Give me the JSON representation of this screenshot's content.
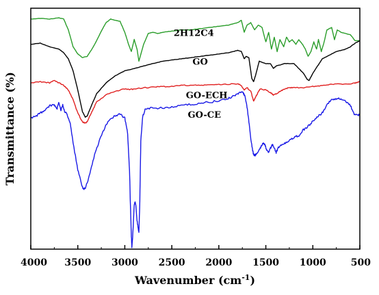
{
  "chart_data": {
    "type": "line",
    "xlabel": "Wavenumber (cm",
    "xlabel_sup": "-1",
    "xlabel_end": ")",
    "ylabel": "Transmittance (%)",
    "xlim": [
      4000,
      500
    ],
    "xticks": [
      4000,
      3500,
      3000,
      2500,
      2000,
      1500,
      1000,
      500
    ],
    "xtick_labels": [
      "4000",
      "3500",
      "3000",
      "2500",
      "2000",
      "1500",
      "1000",
      "500"
    ],
    "y_tick_labels_shown": false,
    "grid": false,
    "series": [
      {
        "name": "2H12C4",
        "color": "#2a9d2a",
        "points": [
          [
            4000,
            0.955
          ],
          [
            3900,
            0.958
          ],
          [
            3800,
            0.955
          ],
          [
            3700,
            0.96
          ],
          [
            3650,
            0.955
          ],
          [
            3600,
            0.91
          ],
          [
            3550,
            0.84
          ],
          [
            3500,
            0.81
          ],
          [
            3450,
            0.795
          ],
          [
            3400,
            0.8
          ],
          [
            3350,
            0.83
          ],
          [
            3300,
            0.865
          ],
          [
            3250,
            0.905
          ],
          [
            3200,
            0.94
          ],
          [
            3150,
            0.955
          ],
          [
            3100,
            0.95
          ],
          [
            3050,
            0.945
          ],
          [
            3000,
            0.9
          ],
          [
            2960,
            0.85
          ],
          [
            2930,
            0.82
          ],
          [
            2900,
            0.87
          ],
          [
            2870,
            0.83
          ],
          [
            2850,
            0.78
          ],
          [
            2800,
            0.85
          ],
          [
            2750,
            0.895
          ],
          [
            2700,
            0.9
          ],
          [
            2650,
            0.895
          ],
          [
            2600,
            0.9
          ],
          [
            2500,
            0.905
          ],
          [
            2400,
            0.91
          ],
          [
            2300,
            0.91
          ],
          [
            2200,
            0.915
          ],
          [
            2100,
            0.92
          ],
          [
            2000,
            0.925
          ],
          [
            1900,
            0.93
          ],
          [
            1850,
            0.935
          ],
          [
            1800,
            0.94
          ],
          [
            1760,
            0.95
          ],
          [
            1730,
            0.9
          ],
          [
            1700,
            0.93
          ],
          [
            1660,
            0.94
          ],
          [
            1620,
            0.91
          ],
          [
            1580,
            0.93
          ],
          [
            1540,
            0.92
          ],
          [
            1500,
            0.86
          ],
          [
            1470,
            0.9
          ],
          [
            1440,
            0.83
          ],
          [
            1410,
            0.88
          ],
          [
            1380,
            0.82
          ],
          [
            1350,
            0.87
          ],
          [
            1310,
            0.84
          ],
          [
            1280,
            0.88
          ],
          [
            1250,
            0.86
          ],
          [
            1220,
            0.87
          ],
          [
            1180,
            0.85
          ],
          [
            1150,
            0.87
          ],
          [
            1110,
            0.85
          ],
          [
            1080,
            0.83
          ],
          [
            1050,
            0.8
          ],
          [
            1020,
            0.82
          ],
          [
            990,
            0.86
          ],
          [
            960,
            0.83
          ],
          [
            940,
            0.87
          ],
          [
            910,
            0.82
          ],
          [
            880,
            0.86
          ],
          [
            850,
            0.91
          ],
          [
            800,
            0.92
          ],
          [
            770,
            0.87
          ],
          [
            740,
            0.91
          ],
          [
            700,
            0.9
          ],
          [
            650,
            0.895
          ],
          [
            600,
            0.89
          ],
          [
            550,
            0.865
          ],
          [
            500,
            0.865
          ]
        ]
      },
      {
        "name": "GO",
        "color": "#000000",
        "points": [
          [
            4000,
            0.85
          ],
          [
            3900,
            0.855
          ],
          [
            3800,
            0.84
          ],
          [
            3700,
            0.83
          ],
          [
            3650,
            0.815
          ],
          [
            3600,
            0.79
          ],
          [
            3550,
            0.74
          ],
          [
            3500,
            0.66
          ],
          [
            3450,
            0.57
          ],
          [
            3420,
            0.548
          ],
          [
            3400,
            0.553
          ],
          [
            3350,
            0.6
          ],
          [
            3300,
            0.645
          ],
          [
            3200,
            0.69
          ],
          [
            3100,
            0.72
          ],
          [
            3000,
            0.74
          ],
          [
            2900,
            0.75
          ],
          [
            2800,
            0.76
          ],
          [
            2700,
            0.77
          ],
          [
            2600,
            0.78
          ],
          [
            2500,
            0.785
          ],
          [
            2400,
            0.79
          ],
          [
            2300,
            0.795
          ],
          [
            2200,
            0.8
          ],
          [
            2100,
            0.805
          ],
          [
            2000,
            0.81
          ],
          [
            1900,
            0.815
          ],
          [
            1850,
            0.82
          ],
          [
            1800,
            0.825
          ],
          [
            1760,
            0.82
          ],
          [
            1730,
            0.79
          ],
          [
            1710,
            0.8
          ],
          [
            1680,
            0.795
          ],
          [
            1650,
            0.71
          ],
          [
            1630,
            0.695
          ],
          [
            1610,
            0.72
          ],
          [
            1570,
            0.78
          ],
          [
            1500,
            0.77
          ],
          [
            1450,
            0.77
          ],
          [
            1420,
            0.75
          ],
          [
            1390,
            0.76
          ],
          [
            1300,
            0.77
          ],
          [
            1200,
            0.77
          ],
          [
            1150,
            0.75
          ],
          [
            1100,
            0.73
          ],
          [
            1060,
            0.705
          ],
          [
            1040,
            0.7
          ],
          [
            1000,
            0.73
          ],
          [
            950,
            0.76
          ],
          [
            900,
            0.79
          ],
          [
            850,
            0.8
          ],
          [
            800,
            0.81
          ],
          [
            750,
            0.82
          ],
          [
            700,
            0.825
          ],
          [
            650,
            0.83
          ],
          [
            600,
            0.84
          ],
          [
            550,
            0.855
          ],
          [
            500,
            0.865
          ]
        ]
      },
      {
        "name": "GO-ECH",
        "color": "#e01f1f",
        "points": [
          [
            4000,
            0.69
          ],
          [
            3900,
            0.695
          ],
          [
            3800,
            0.69
          ],
          [
            3750,
            0.7
          ],
          [
            3700,
            0.69
          ],
          [
            3650,
            0.68
          ],
          [
            3600,
            0.66
          ],
          [
            3550,
            0.62
          ],
          [
            3500,
            0.565
          ],
          [
            3450,
            0.528
          ],
          [
            3420,
            0.523
          ],
          [
            3400,
            0.53
          ],
          [
            3350,
            0.57
          ],
          [
            3300,
            0.61
          ],
          [
            3200,
            0.64
          ],
          [
            3100,
            0.655
          ],
          [
            3000,
            0.665
          ],
          [
            2950,
            0.662
          ],
          [
            2900,
            0.665
          ],
          [
            2800,
            0.67
          ],
          [
            2700,
            0.672
          ],
          [
            2600,
            0.675
          ],
          [
            2500,
            0.675
          ],
          [
            2400,
            0.68
          ],
          [
            2300,
            0.68
          ],
          [
            2200,
            0.68
          ],
          [
            2100,
            0.682
          ],
          [
            2000,
            0.683
          ],
          [
            1900,
            0.685
          ],
          [
            1800,
            0.686
          ],
          [
            1760,
            0.68
          ],
          [
            1730,
            0.66
          ],
          [
            1700,
            0.67
          ],
          [
            1660,
            0.655
          ],
          [
            1630,
            0.615
          ],
          [
            1610,
            0.63
          ],
          [
            1590,
            0.645
          ],
          [
            1560,
            0.665
          ],
          [
            1500,
            0.66
          ],
          [
            1450,
            0.65
          ],
          [
            1420,
            0.64
          ],
          [
            1390,
            0.645
          ],
          [
            1350,
            0.655
          ],
          [
            1300,
            0.665
          ],
          [
            1250,
            0.67
          ],
          [
            1200,
            0.67
          ],
          [
            1100,
            0.67
          ],
          [
            1000,
            0.675
          ],
          [
            950,
            0.676
          ],
          [
            900,
            0.68
          ],
          [
            800,
            0.685
          ],
          [
            700,
            0.685
          ],
          [
            600,
            0.685
          ],
          [
            550,
            0.69
          ],
          [
            500,
            0.695
          ]
        ]
      },
      {
        "name": "GO-CE",
        "color": "#1818e6",
        "points": [
          [
            4000,
            0.545
          ],
          [
            3950,
            0.55
          ],
          [
            3900,
            0.565
          ],
          [
            3850,
            0.575
          ],
          [
            3800,
            0.595
          ],
          [
            3750,
            0.6
          ],
          [
            3720,
            0.585
          ],
          [
            3700,
            0.61
          ],
          [
            3680,
            0.575
          ],
          [
            3660,
            0.6
          ],
          [
            3640,
            0.57
          ],
          [
            3620,
            0.565
          ],
          [
            3600,
            0.545
          ],
          [
            3580,
            0.52
          ],
          [
            3550,
            0.44
          ],
          [
            3500,
            0.33
          ],
          [
            3460,
            0.27
          ],
          [
            3440,
            0.25
          ],
          [
            3420,
            0.255
          ],
          [
            3380,
            0.3
          ],
          [
            3330,
            0.38
          ],
          [
            3280,
            0.44
          ],
          [
            3230,
            0.49
          ],
          [
            3180,
            0.53
          ],
          [
            3100,
            0.555
          ],
          [
            3050,
            0.56
          ],
          [
            3000,
            0.545
          ],
          [
            2970,
            0.48
          ],
          [
            2950,
            0.33
          ],
          [
            2940,
            0.18
          ],
          [
            2930,
            0.05
          ],
          [
            2925,
            0.01
          ],
          [
            2915,
            0.06
          ],
          [
            2900,
            0.18
          ],
          [
            2890,
            0.2
          ],
          [
            2880,
            0.17
          ],
          [
            2870,
            0.12
          ],
          [
            2855,
            0.08
          ],
          [
            2850,
            0.07
          ],
          [
            2840,
            0.2
          ],
          [
            2830,
            0.45
          ],
          [
            2810,
            0.55
          ],
          [
            2780,
            0.585
          ],
          [
            2700,
            0.585
          ],
          [
            2600,
            0.587
          ],
          [
            2500,
            0.59
          ],
          [
            2400,
            0.595
          ],
          [
            2300,
            0.6
          ],
          [
            2200,
            0.605
          ],
          [
            2100,
            0.61
          ],
          [
            2000,
            0.615
          ],
          [
            1900,
            0.625
          ],
          [
            1850,
            0.635
          ],
          [
            1800,
            0.645
          ],
          [
            1760,
            0.655
          ],
          [
            1740,
            0.65
          ],
          [
            1720,
            0.63
          ],
          [
            1700,
            0.59
          ],
          [
            1680,
            0.53
          ],
          [
            1660,
            0.46
          ],
          [
            1640,
            0.41
          ],
          [
            1630,
            0.392
          ],
          [
            1610,
            0.39
          ],
          [
            1590,
            0.4
          ],
          [
            1560,
            0.42
          ],
          [
            1530,
            0.44
          ],
          [
            1510,
            0.435
          ],
          [
            1490,
            0.41
          ],
          [
            1470,
            0.4
          ],
          [
            1450,
            0.42
          ],
          [
            1430,
            0.435
          ],
          [
            1410,
            0.42
          ],
          [
            1390,
            0.4
          ],
          [
            1370,
            0.42
          ],
          [
            1350,
            0.43
          ],
          [
            1300,
            0.44
          ],
          [
            1250,
            0.45
          ],
          [
            1200,
            0.465
          ],
          [
            1150,
            0.47
          ],
          [
            1100,
            0.495
          ],
          [
            1050,
            0.51
          ],
          [
            1000,
            0.53
          ],
          [
            950,
            0.55
          ],
          [
            900,
            0.565
          ],
          [
            850,
            0.6
          ],
          [
            800,
            0.62
          ],
          [
            750,
            0.625
          ],
          [
            700,
            0.625
          ],
          [
            650,
            0.615
          ],
          [
            600,
            0.595
          ],
          [
            560,
            0.56
          ],
          [
            520,
            0.555
          ],
          [
            500,
            0.56
          ]
        ]
      }
    ],
    "annotations": [
      {
        "text": "2H12C4",
        "x": 2480,
        "y": 0.885
      },
      {
        "text": "GO",
        "x": 2280,
        "y": 0.765
      },
      {
        "text": "GO-ECH",
        "x": 2350,
        "y": 0.626
      },
      {
        "text": "GO-CE",
        "x": 2330,
        "y": 0.545
      }
    ]
  }
}
